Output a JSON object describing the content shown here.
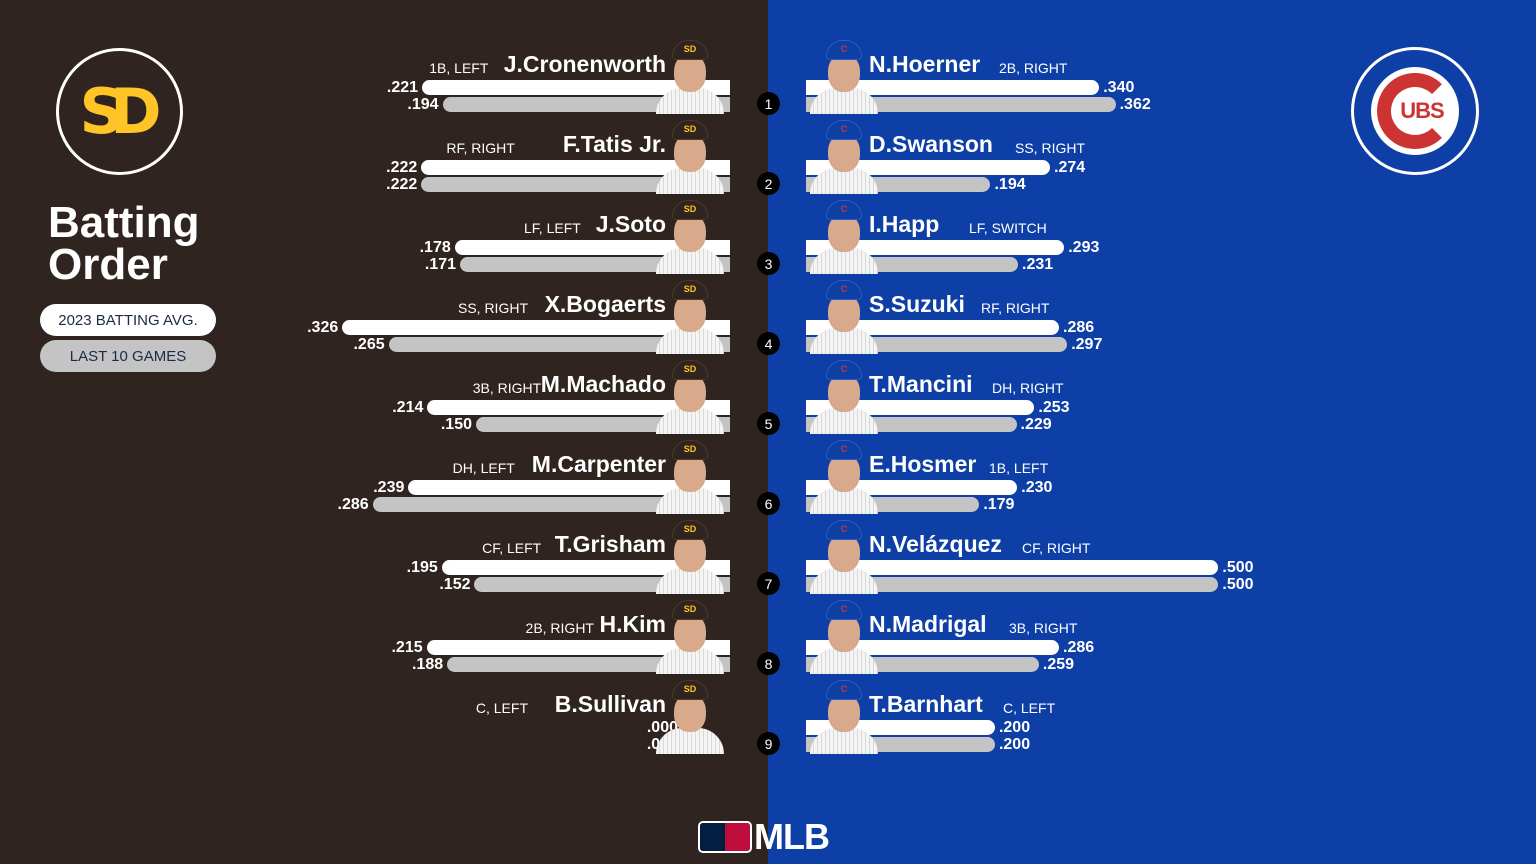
{
  "header": {
    "title_line1": "Batting",
    "title_line2": "Order",
    "away_logo": "SD",
    "home_logo": "UBS"
  },
  "legend": {
    "season_label": "2023 BATTING AVG.",
    "last10_label": "LAST 10 GAMES",
    "season_color": "#ffffff",
    "last10_color": "#c4c4c4"
  },
  "colors": {
    "padres_brown": "#2f241f",
    "padres_gold": "#ffc425",
    "cubs_blue": "#0e3fa6",
    "cubs_red": "#cc3433"
  },
  "away": {
    "team": "Padres",
    "players": [
      {
        "order": "1",
        "name": "J.Cronenworth",
        "pos": "1B, LEFT",
        "season": ".221",
        "last10": ".194"
      },
      {
        "order": "2",
        "name": "F.Tatis Jr.",
        "pos": "RF, RIGHT",
        "season": ".222",
        "last10": ".222"
      },
      {
        "order": "3",
        "name": "J.Soto",
        "pos": "LF, LEFT",
        "season": ".178",
        "last10": ".171"
      },
      {
        "order": "4",
        "name": "X.Bogaerts",
        "pos": "SS, RIGHT",
        "season": ".326",
        "last10": ".265"
      },
      {
        "order": "5",
        "name": "M.Machado",
        "pos": "3B, RIGHT",
        "season": ".214",
        "last10": ".150"
      },
      {
        "order": "6",
        "name": "M.Carpenter",
        "pos": "DH, LEFT",
        "season": ".239",
        "last10": ".286"
      },
      {
        "order": "7",
        "name": "T.Grisham",
        "pos": "CF, LEFT",
        "season": ".195",
        "last10": ".152"
      },
      {
        "order": "8",
        "name": "H.Kim",
        "pos": "2B, RIGHT",
        "season": ".215",
        "last10": ".188"
      },
      {
        "order": "9",
        "name": "B.Sullivan",
        "pos": "C, LEFT",
        "season": ".000",
        "last10": ".000"
      }
    ]
  },
  "home": {
    "team": "Cubs",
    "players": [
      {
        "order": "1",
        "name": "N.Hoerner",
        "pos": "2B, RIGHT",
        "season": ".340",
        "last10": ".362"
      },
      {
        "order": "2",
        "name": "D.Swanson",
        "pos": "SS, RIGHT",
        "season": ".274",
        "last10": ".194"
      },
      {
        "order": "3",
        "name": "I.Happ",
        "pos": "LF, SWITCH",
        "season": ".293",
        "last10": ".231"
      },
      {
        "order": "4",
        "name": "S.Suzuki",
        "pos": "RF, RIGHT",
        "season": ".286",
        "last10": ".297"
      },
      {
        "order": "5",
        "name": "T.Mancini",
        "pos": "DH, RIGHT",
        "season": ".253",
        "last10": ".229"
      },
      {
        "order": "6",
        "name": "E.Hosmer",
        "pos": "1B, LEFT",
        "season": ".230",
        "last10": ".179"
      },
      {
        "order": "7",
        "name": "N.Velázquez",
        "pos": "CF, RIGHT",
        "season": ".500",
        "last10": ".500"
      },
      {
        "order": "8",
        "name": "N.Madrigal",
        "pos": "3B, RIGHT",
        "season": ".286",
        "last10": ".259"
      },
      {
        "order": "9",
        "name": "T.Barnhart",
        "pos": "C, LEFT",
        "season": ".200",
        "last10": ".200"
      }
    ]
  },
  "footer": {
    "brand": "MLB"
  },
  "chart_data": [
    {
      "type": "bar",
      "orientation": "horizontal",
      "title": "Batting Order — Padres",
      "categories": [
        "J.Cronenworth",
        "F.Tatis Jr.",
        "J.Soto",
        "X.Bogaerts",
        "M.Machado",
        "M.Carpenter",
        "T.Grisham",
        "H.Kim",
        "B.Sullivan"
      ],
      "series": [
        {
          "name": "2023 BATTING AVG.",
          "values": [
            0.221,
            0.222,
            0.178,
            0.326,
            0.214,
            0.239,
            0.195,
            0.215,
            0.0
          ]
        },
        {
          "name": "LAST 10 GAMES",
          "values": [
            0.194,
            0.222,
            0.171,
            0.265,
            0.15,
            0.286,
            0.152,
            0.188,
            0.0
          ]
        }
      ],
      "xlim": [
        0,
        0.5
      ],
      "grid": false,
      "legend_position": "left"
    },
    {
      "type": "bar",
      "orientation": "horizontal",
      "title": "Batting Order — Cubs",
      "categories": [
        "N.Hoerner",
        "D.Swanson",
        "I.Happ",
        "S.Suzuki",
        "T.Mancini",
        "E.Hosmer",
        "N.Velázquez",
        "N.Madrigal",
        "T.Barnhart"
      ],
      "series": [
        {
          "name": "2023 BATTING AVG.",
          "values": [
            0.34,
            0.274,
            0.293,
            0.286,
            0.253,
            0.23,
            0.5,
            0.286,
            0.2
          ]
        },
        {
          "name": "LAST 10 GAMES",
          "values": [
            0.362,
            0.194,
            0.231,
            0.297,
            0.229,
            0.179,
            0.5,
            0.259,
            0.2
          ]
        }
      ],
      "xlim": [
        0,
        0.5
      ],
      "grid": false,
      "legend_position": "left"
    }
  ]
}
